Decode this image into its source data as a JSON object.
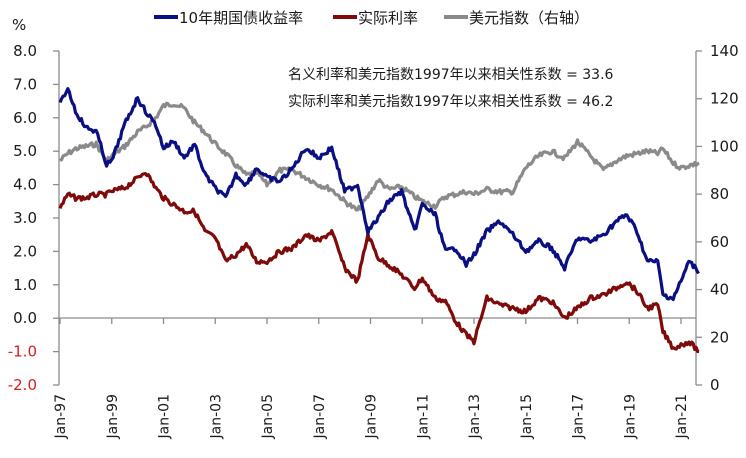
{
  "chart_data": {
    "type": "line",
    "title": "",
    "ylabel_left": "%",
    "ylabel_right": "",
    "ylim_left": [
      -2.0,
      8.0
    ],
    "ylim_right": [
      0,
      140
    ],
    "yticks_left": [
      "8.0",
      "7.0",
      "6.0",
      "5.0",
      "4.0",
      "3.0",
      "2.0",
      "1.0",
      "0.0",
      "-1.0",
      "-2.0"
    ],
    "yticks_right": [
      "140",
      "120",
      "100",
      "80",
      "60",
      "40",
      "20",
      "0"
    ],
    "x_tick_labels": [
      "Jan-97",
      "Jan-99",
      "Jan-01",
      "Jan-03",
      "Jan-05",
      "Jan-07",
      "Jan-09",
      "Jan-11",
      "Jan-13",
      "Jan-15",
      "Jan-17",
      "Jan-19",
      "Jan-21"
    ],
    "x_range": [
      1997.0,
      2021.8
    ],
    "legend_position": "top",
    "grid": false,
    "legend": [
      {
        "name": "10年期国债收益率",
        "color": "#0a0f82",
        "axis": "left"
      },
      {
        "name": "实际利率",
        "color": "#7f0a0a",
        "axis": "left"
      },
      {
        "name": "美元指数（右轴）",
        "color": "#8a8a8a",
        "axis": "right"
      }
    ],
    "annotations": [
      {
        "text": "名义利率和美元指数1997年以来相关性系数 = ",
        "value": "33.6"
      },
      {
        "text": "实际利率和美元指数1997年以来相关性系数 = ",
        "value": "46.2"
      }
    ],
    "x": [
      1997.0,
      1997.3,
      1997.6,
      1998.0,
      1998.4,
      1998.8,
      1999.0,
      1999.5,
      2000.0,
      2000.3,
      2000.7,
      2001.0,
      2001.4,
      2001.8,
      2002.2,
      2002.6,
      2003.0,
      2003.4,
      2003.8,
      2004.2,
      2004.6,
      2005.0,
      2005.5,
      2006.0,
      2006.5,
      2007.0,
      2007.5,
      2008.0,
      2008.5,
      2008.9,
      2009.3,
      2009.7,
      2010.2,
      2010.7,
      2011.0,
      2011.5,
      2011.9,
      2012.3,
      2012.7,
      2013.0,
      2013.5,
      2014.0,
      2014.5,
      2015.0,
      2015.5,
      2016.0,
      2016.5,
      2017.0,
      2017.5,
      2018.0,
      2018.5,
      2018.9,
      2019.3,
      2019.7,
      2020.1,
      2020.3,
      2020.7,
      2021.0,
      2021.3,
      2021.7
    ],
    "series": [
      {
        "name": "10年期国债收益率",
        "axis": "left",
        "values": [
          6.4,
          6.9,
          6.2,
          5.7,
          5.6,
          4.6,
          4.7,
          5.8,
          6.6,
          6.2,
          5.8,
          5.1,
          5.3,
          4.8,
          5.2,
          4.3,
          3.9,
          3.6,
          4.3,
          4.0,
          4.5,
          4.2,
          4.1,
          4.5,
          5.1,
          4.8,
          5.1,
          3.8,
          4.0,
          2.6,
          3.0,
          3.5,
          3.8,
          2.6,
          3.4,
          3.1,
          2.0,
          2.1,
          1.6,
          1.9,
          2.6,
          2.9,
          2.5,
          2.0,
          2.3,
          2.1,
          1.5,
          2.4,
          2.3,
          2.5,
          2.9,
          3.1,
          2.6,
          1.7,
          1.7,
          0.7,
          0.6,
          1.1,
          1.7,
          1.4
        ]
      },
      {
        "name": "实际利率",
        "axis": "left",
        "values": [
          3.3,
          3.7,
          3.6,
          3.6,
          3.7,
          3.7,
          3.8,
          3.9,
          4.2,
          4.4,
          3.9,
          3.6,
          3.4,
          3.2,
          3.2,
          2.6,
          2.4,
          1.7,
          1.9,
          2.2,
          1.7,
          1.7,
          2.0,
          2.1,
          2.5,
          2.3,
          2.6,
          1.5,
          1.1,
          2.5,
          1.8,
          1.6,
          1.3,
          0.9,
          1.2,
          0.6,
          0.5,
          -0.1,
          -0.5,
          -0.7,
          0.6,
          0.4,
          0.3,
          0.2,
          0.6,
          0.5,
          0.0,
          0.3,
          0.6,
          0.7,
          0.9,
          1.1,
          0.8,
          0.3,
          0.4,
          -0.4,
          -0.9,
          -0.8,
          -0.7,
          -1.0
        ]
      },
      {
        "name": "美元指数（右轴）",
        "axis": "right",
        "values": [
          94,
          97,
          99,
          100,
          101,
          94,
          96,
          100,
          106,
          108,
          112,
          117,
          118,
          116,
          110,
          106,
          101,
          97,
          92,
          88,
          89,
          84,
          90,
          90,
          87,
          84,
          82,
          77,
          73,
          79,
          86,
          82,
          83,
          79,
          77,
          75,
          79,
          80,
          81,
          80,
          82,
          81,
          81,
          91,
          96,
          98,
          95,
          102,
          96,
          90,
          94,
          96,
          97,
          98,
          97,
          99,
          93,
          91,
          92,
          93
        ]
      }
    ]
  },
  "legend": {
    "items": [
      {
        "label": "10年期国债收益率"
      },
      {
        "label": "实际利率"
      },
      {
        "label": "美元指数（右轴）"
      }
    ]
  },
  "axes": {
    "left_unit": "%"
  },
  "annotations": {
    "line1": "名义利率和美元指数1997年以来相关性系数 =  33.6",
    "line2": "实际利率和美元指数1997年以来相关性系数 =  46.2"
  }
}
